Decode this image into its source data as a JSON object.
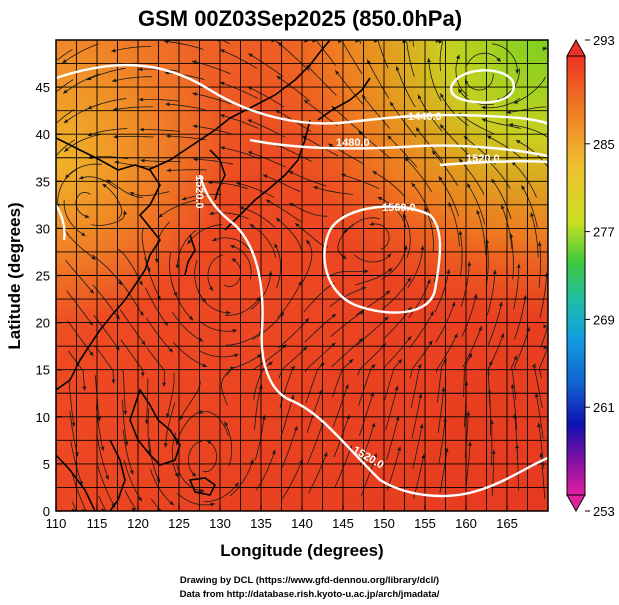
{
  "title": "GSM 00Z03Sep2025 (850.0hPa)",
  "x_axis": {
    "label": "Longitude (degrees)",
    "ticks": [
      "110",
      "115",
      "120",
      "125",
      "130",
      "135",
      "140",
      "145",
      "150",
      "155",
      "160",
      "165"
    ]
  },
  "y_axis": {
    "label": "Latitude  (degrees)",
    "ticks": [
      "0",
      "5",
      "10",
      "15",
      "20",
      "25",
      "30",
      "35",
      "40",
      "45"
    ]
  },
  "colorbar": {
    "ticks": [
      "293",
      "285",
      "277",
      "269",
      "261",
      "253"
    ],
    "colors": [
      "#ee3322",
      "#f08020",
      "#f0c030",
      "#d8e020",
      "#70d020",
      "#20c080",
      "#10a0d0",
      "#1060d0",
      "#1010b0",
      "#8010a0",
      "#e020a0"
    ]
  },
  "contours": [
    {
      "label": "1440.0"
    },
    {
      "label": "1480.0"
    },
    {
      "label": "1520.0"
    },
    {
      "label": "1560.0"
    },
    {
      "label": "1520.0"
    },
    {
      "label": "1520.0"
    }
  ],
  "credits": {
    "line1": "Drawing by DCL (https://www.gfd-dennou.org/library/dcl/)",
    "line2": "Data from http://database.rish.kyoto-u.ac.jp/arch/jmadata/"
  },
  "chart_data": {
    "type": "heatmap",
    "title": "GSM 00Z03Sep2025 (850.0hPa)",
    "xlabel": "Longitude (degrees)",
    "ylabel": "Latitude  (degrees)",
    "xlim": [
      110,
      170
    ],
    "ylim": [
      0,
      50
    ],
    "colorbar_range": [
      253,
      293
    ],
    "grid": true,
    "overlays": [
      "streamlines",
      "coastlines",
      "geopotential height contours"
    ]
  }
}
